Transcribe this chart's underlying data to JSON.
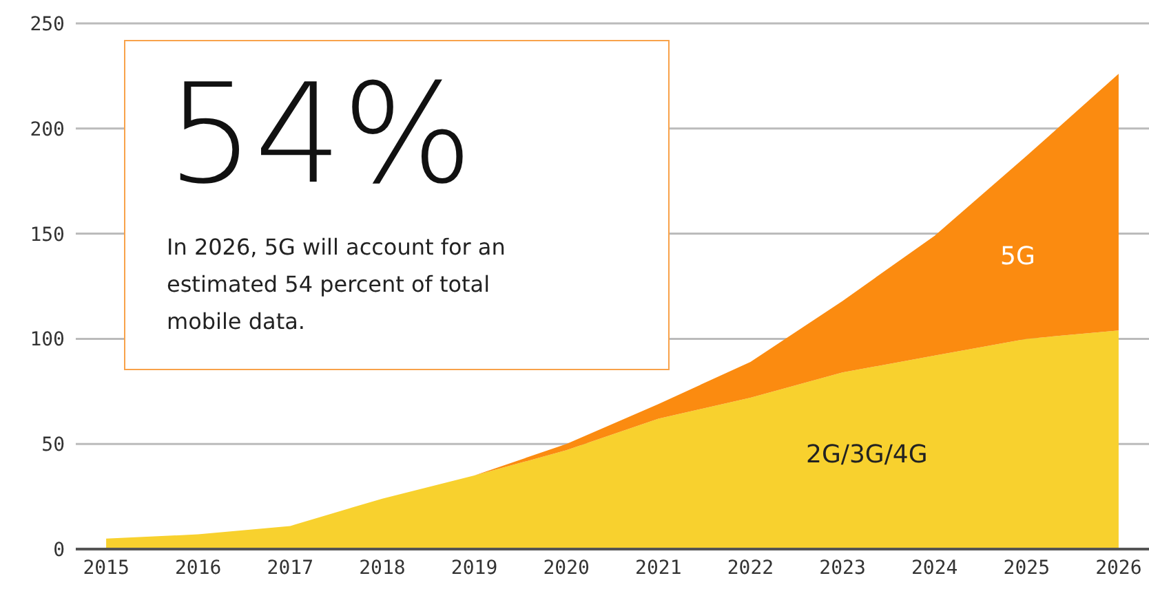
{
  "chart_data": {
    "type": "area",
    "stacked": true,
    "x": [
      2015,
      2016,
      2017,
      2018,
      2019,
      2020,
      2021,
      2022,
      2023,
      2024,
      2025,
      2026
    ],
    "series": [
      {
        "name": "2G/3G/4G",
        "color": "#f8d12e",
        "values": [
          5,
          7,
          11,
          24,
          35,
          47,
          62,
          72,
          84,
          92,
          100,
          104
        ]
      },
      {
        "name": "5G",
        "color": "#fb8b10",
        "values": [
          0,
          0,
          0,
          0,
          0,
          3,
          7,
          17,
          34,
          57,
          87,
          122
        ]
      }
    ],
    "xlim": [
      2014.67,
      2026.33
    ],
    "xticks": [
      2015,
      2016,
      2017,
      2018,
      2019,
      2020,
      2021,
      2022,
      2023,
      2024,
      2025,
      2026
    ],
    "ylim": [
      0,
      250
    ],
    "yticks": [
      0,
      50,
      100,
      150,
      200,
      250
    ],
    "grid": "y",
    "annotations": [
      "54%",
      "In 2026, 5G will account for an estimated 54 percent of total mobile data."
    ]
  }
}
